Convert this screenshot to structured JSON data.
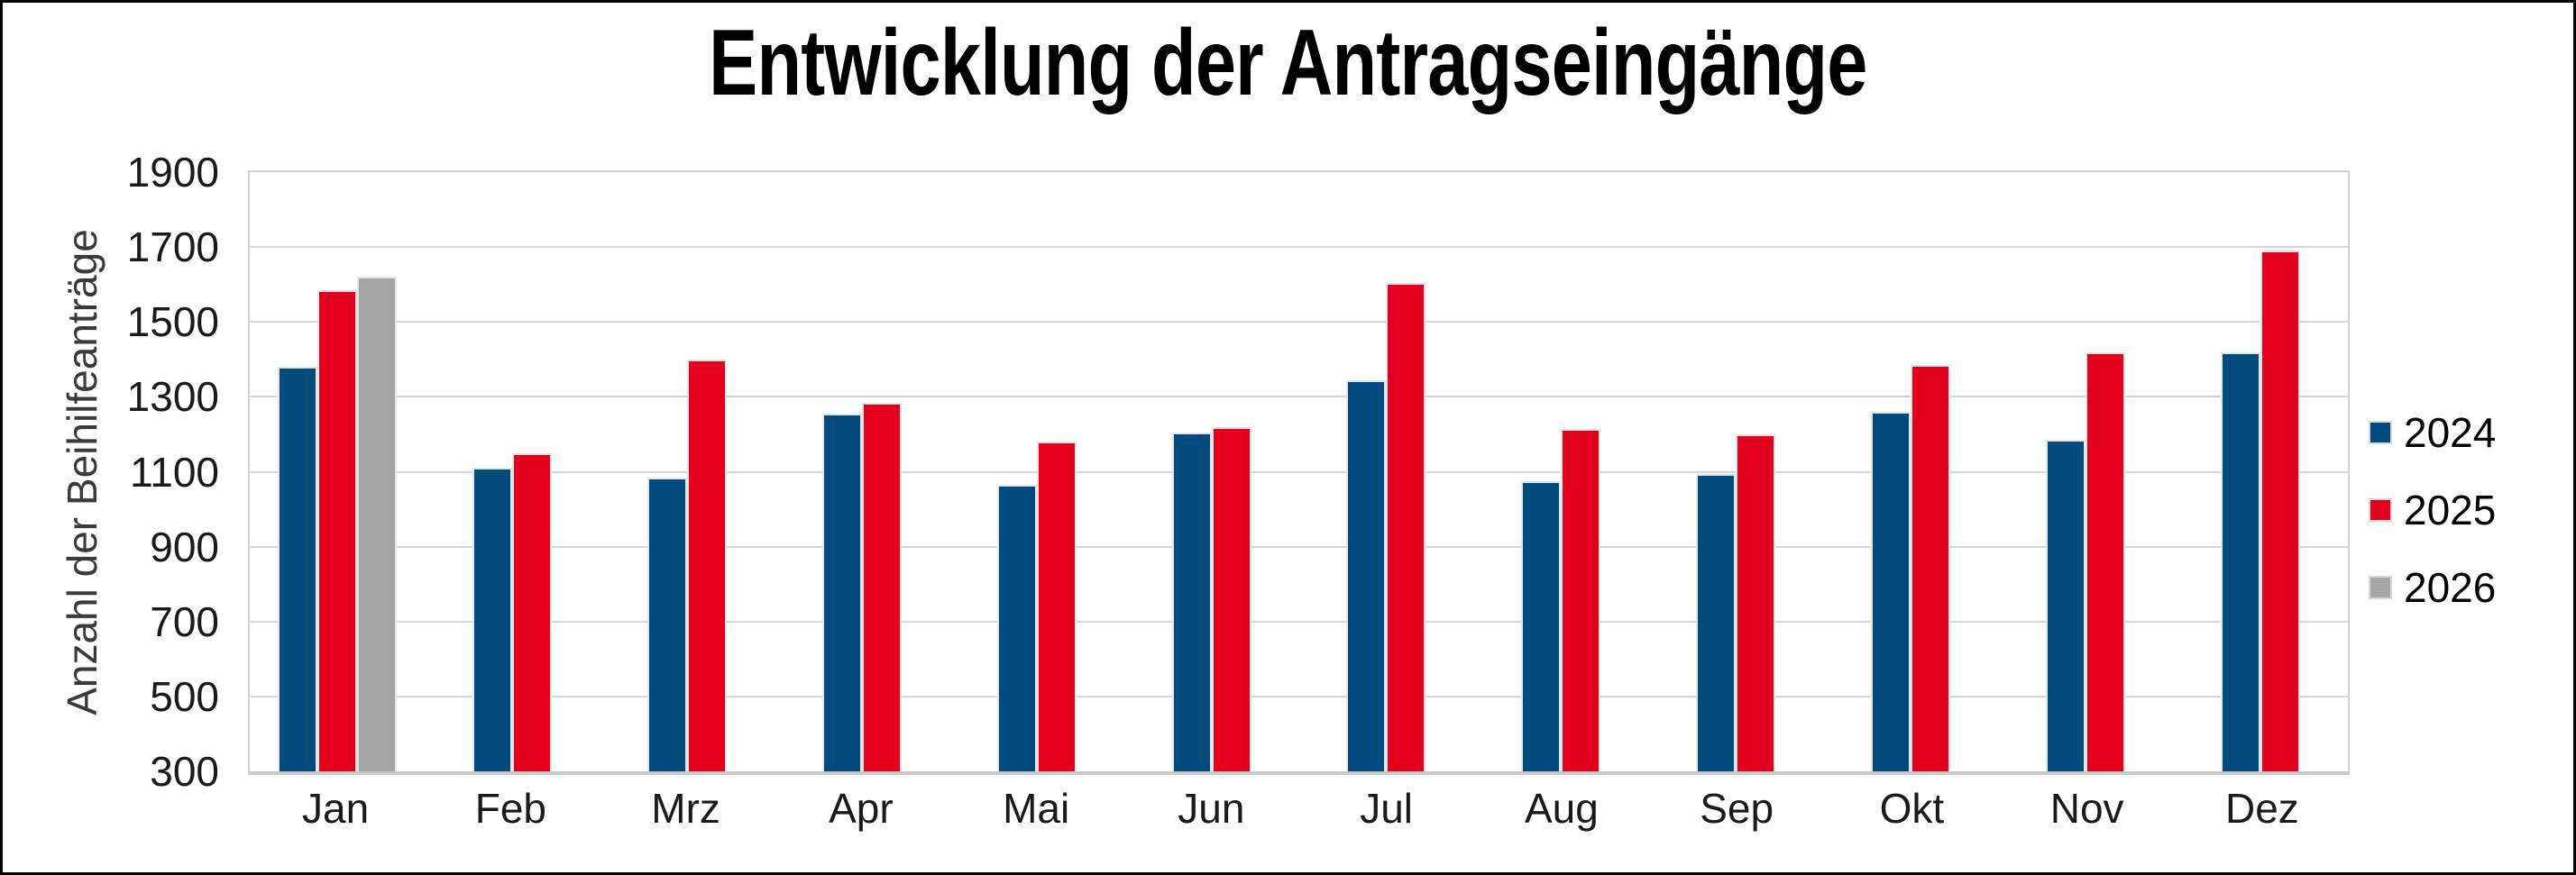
{
  "chart_data": {
    "type": "bar",
    "title": "Entwicklung der Antragseingänge",
    "xlabel": "",
    "ylabel": "Anzahl der Beihilfeanträge",
    "ylim": [
      300,
      1900
    ],
    "ytick_step": 200,
    "yticks": [
      1900,
      1700,
      1500,
      1300,
      1100,
      900,
      700,
      500,
      300
    ],
    "grid": true,
    "legend_position": "right",
    "categories": [
      "Jan",
      "Feb",
      "Mrz",
      "Apr",
      "Mai",
      "Jun",
      "Jul",
      "Aug",
      "Sep",
      "Okt",
      "Nov",
      "Dez"
    ],
    "series": [
      {
        "name": "2024",
        "color": "#004a7e",
        "values": [
          1380,
          1110,
          1085,
          1255,
          1065,
          1205,
          1345,
          1075,
          1095,
          1260,
          1185,
          1420
        ]
      },
      {
        "name": "2025",
        "color": "#e2001e",
        "values": [
          1585,
          1150,
          1400,
          1285,
          1180,
          1220,
          1605,
          1215,
          1200,
          1385,
          1420,
          1690
        ]
      },
      {
        "name": "2026",
        "color": "#a6a6a6",
        "values": [
          1620,
          null,
          null,
          null,
          null,
          null,
          null,
          null,
          null,
          null,
          null,
          null
        ]
      }
    ],
    "colors": {
      "gridline": "#d6d6d6",
      "plot_border": "#d2d2d2",
      "bar_border": "#e5e5e5",
      "axis_text": "#1a1a1a",
      "axis_title_text": "#3a3a3a"
    }
  }
}
